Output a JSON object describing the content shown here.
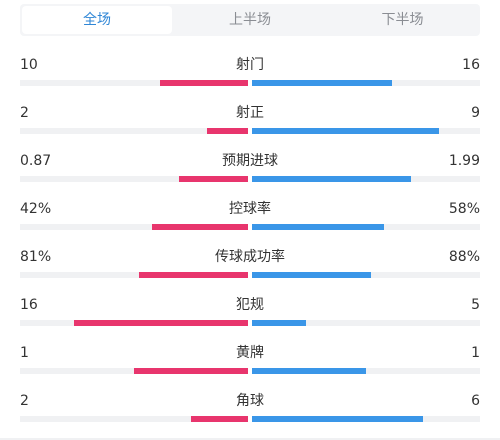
{
  "tabs": [
    {
      "label": "全场",
      "active": true
    },
    {
      "label": "上半场",
      "active": false
    },
    {
      "label": "下半场",
      "active": false
    }
  ],
  "colors": {
    "home": "#e8356d",
    "away": "#3a96e8",
    "active_tab": "#2f86d6"
  },
  "stats": [
    {
      "name": "射门",
      "home": "10",
      "away": "16",
      "home_share": 0.385,
      "away_share": 0.615
    },
    {
      "name": "射正",
      "home": "2",
      "away": "9",
      "home_share": 0.182,
      "away_share": 0.818
    },
    {
      "name": "预期进球",
      "home": "0.87",
      "away": "1.99",
      "home_share": 0.304,
      "away_share": 0.696
    },
    {
      "name": "控球率",
      "home": "42%",
      "away": "58%",
      "home_share": 0.42,
      "away_share": 0.58
    },
    {
      "name": "传球成功率",
      "home": "81%",
      "away": "88%",
      "home_share": 0.479,
      "away_share": 0.521
    },
    {
      "name": "犯规",
      "home": "16",
      "away": "5",
      "home_share": 0.762,
      "away_share": 0.238
    },
    {
      "name": "黄牌",
      "home": "1",
      "away": "1",
      "home_share": 0.5,
      "away_share": 0.5
    },
    {
      "name": "角球",
      "home": "2",
      "away": "6",
      "home_share": 0.25,
      "away_share": 0.75
    }
  ]
}
